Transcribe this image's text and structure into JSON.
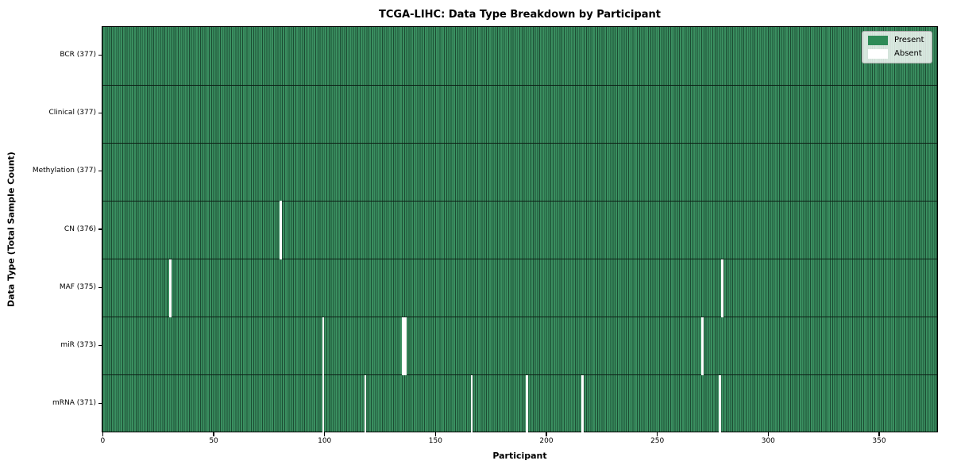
{
  "chart_data": {
    "type": "heatmap",
    "title": "TCGA-LIHC: Data Type Breakdown by Participant",
    "xlabel": "Participant",
    "ylabel": "Data Type (Total Sample Count)",
    "n_participants": 377,
    "xlim": [
      0,
      377
    ],
    "x_ticks": [
      0,
      50,
      100,
      150,
      200,
      250,
      300,
      350
    ],
    "grid": false,
    "legend_position": "upper right",
    "legend": [
      {
        "label": "Present",
        "color": "#2e8b57"
      },
      {
        "label": "Absent",
        "color": "#ffffff"
      }
    ],
    "rows": [
      {
        "label": "BCR (377)",
        "data_type": "BCR",
        "present_count": 377,
        "absent_participants": []
      },
      {
        "label": "Clinical (377)",
        "data_type": "Clinical",
        "present_count": 377,
        "absent_participants": []
      },
      {
        "label": "Methylation (377)",
        "data_type": "Methylation",
        "present_count": 377,
        "absent_participants": []
      },
      {
        "label": "CN (376)",
        "data_type": "CN",
        "present_count": 376,
        "absent_participants": [
          80
        ]
      },
      {
        "label": "MAF (375)",
        "data_type": "MAF",
        "present_count": 375,
        "absent_participants": [
          30,
          279
        ]
      },
      {
        "label": "miR (373)",
        "data_type": "miR",
        "present_count": 373,
        "absent_participants": [
          99,
          135,
          136,
          270
        ]
      },
      {
        "label": "mRNA (371)",
        "data_type": "mRNA",
        "present_count": 371,
        "absent_participants": [
          99,
          118,
          166,
          191,
          216,
          278
        ]
      }
    ],
    "colors": {
      "present": "#3a8f60",
      "present_edge": "#1c4c33",
      "absent": "#ffffff",
      "row_separator": "#0c1f15",
      "axis": "#000000"
    }
  }
}
